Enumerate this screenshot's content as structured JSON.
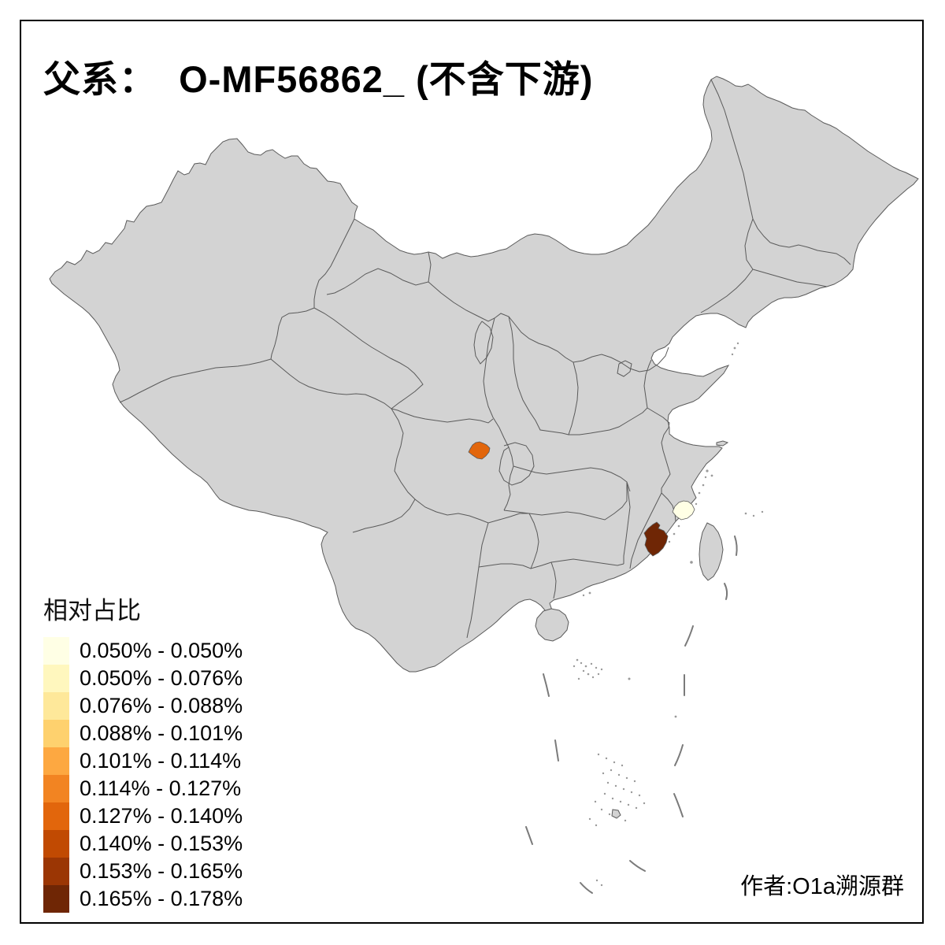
{
  "title": "父系：  O-MF56862_ (不含下游)",
  "legend": {
    "title": "相对占比",
    "items": [
      {
        "label": "0.050% - 0.050%",
        "color": "#FFFFE5"
      },
      {
        "label": "0.050% - 0.076%",
        "color": "#FFF7BE"
      },
      {
        "label": "0.076% - 0.088%",
        "color": "#FEE89A"
      },
      {
        "label": "0.088% - 0.101%",
        "color": "#FED16E"
      },
      {
        "label": "0.101% - 0.114%",
        "color": "#FDA841"
      },
      {
        "label": "0.114% - 0.127%",
        "color": "#F28422"
      },
      {
        "label": "0.127% - 0.140%",
        "color": "#E2660C"
      },
      {
        "label": "0.140% - 0.153%",
        "color": "#C14A02"
      },
      {
        "label": "0.153% - 0.165%",
        "color": "#9B3604"
      },
      {
        "label": "0.165% - 0.178%",
        "color": "#6F2605"
      }
    ]
  },
  "attribution": "作者:O1a溯源群",
  "map": {
    "background_color": "#FFFFFF",
    "land_color": "#D3D3D3",
    "border_color": "#5A5A5A",
    "frame_color": "#000000",
    "regions": [
      {
        "name": "sichuan-chengdu-region",
        "color": "#E2660C"
      },
      {
        "name": "north-fujian-coastal-region",
        "color": "#FFFFE5"
      },
      {
        "name": "south-fujian-region",
        "color": "#6F2605"
      }
    ]
  }
}
